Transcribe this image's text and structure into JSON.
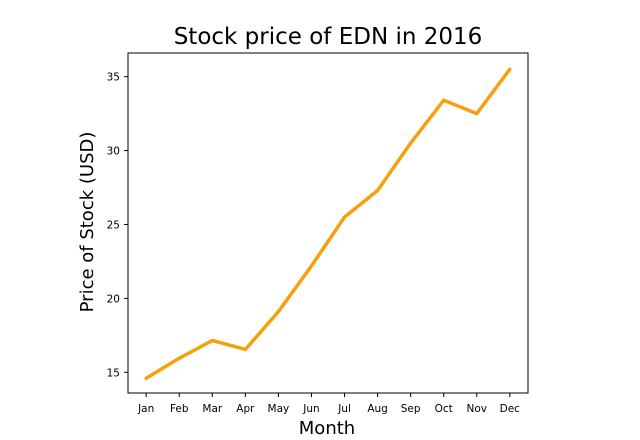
{
  "chart_data": {
    "type": "line",
    "title": "Stock price of EDN in 2016",
    "xlabel": "Month",
    "ylabel": "Price of Stock (USD)",
    "categories": [
      "Jan",
      "Feb",
      "Mar",
      "Apr",
      "May",
      "Jun",
      "Jul",
      "Aug",
      "Sep",
      "Oct",
      "Nov",
      "Dec"
    ],
    "series": [
      {
        "values": [
          14.6,
          15.95,
          17.15,
          16.55,
          19.1,
          22.2,
          25.5,
          27.3,
          30.5,
          33.4,
          32.5,
          35.5
        ],
        "color": "#f5a10e"
      }
    ],
    "yticks": [
      15,
      20,
      25,
      30,
      35
    ],
    "ylim": [
      13.6,
      36.6
    ],
    "grid": false,
    "legend": "none"
  }
}
